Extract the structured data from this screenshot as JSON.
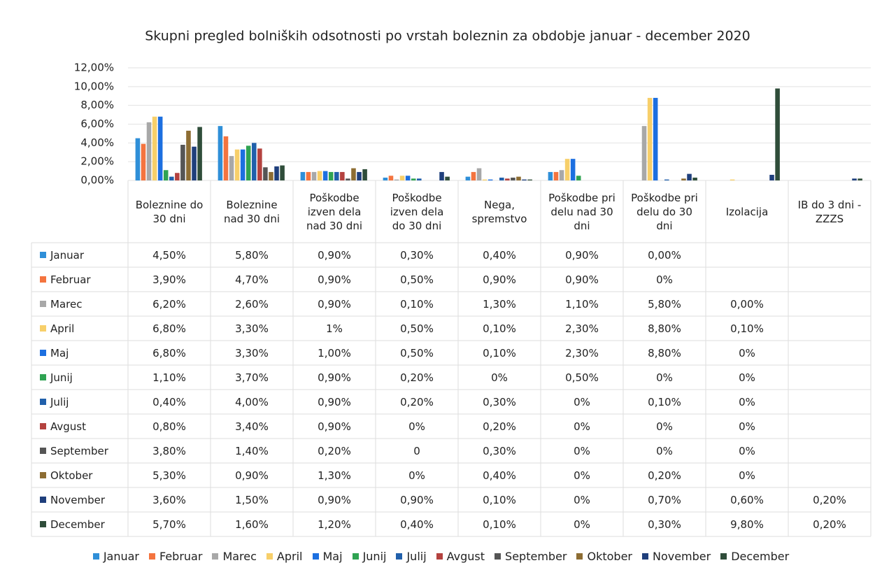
{
  "chart_data": {
    "type": "bar",
    "title": "Skupni pregled bolniških odsotnosti po vrstah boleznin za obdobje januar - december 2020",
    "categories": [
      "Boleznine do 30 dni",
      "Boleznine nad 30 dni",
      "Poškodbe izven dela nad 30 dni",
      "Poškodbe izven dela do 30 dni",
      "Nega, spremstvo",
      "Poškodbe pri delu nad 30 dni",
      "Poškodbe pri delu do 30 dni",
      "Izolacija",
      "IB do 3 dni - ZZZS"
    ],
    "ylim": [
      0,
      12
    ],
    "yticks": [
      {
        "value": 0,
        "label": "0,00%"
      },
      {
        "value": 2,
        "label": "2,00%"
      },
      {
        "value": 4,
        "label": "4,00%"
      },
      {
        "value": 6,
        "label": "6,00%"
      },
      {
        "value": 8,
        "label": "8,00%"
      },
      {
        "value": 10,
        "label": "10,00%"
      },
      {
        "value": 12,
        "label": "12,00%"
      }
    ],
    "grid": true,
    "legend": "bottom",
    "series": [
      {
        "name": "Januar",
        "color": "#2f8fd8",
        "values": [
          4.5,
          5.8,
          0.9,
          0.3,
          0.4,
          0.9,
          0.0,
          null,
          null
        ],
        "value_labels": [
          "4,50%",
          "5,80%",
          "0,90%",
          "0,30%",
          "0,40%",
          "0,90%",
          "0,00%",
          null,
          null
        ]
      },
      {
        "name": "Februar",
        "color": "#f4743f",
        "values": [
          3.9,
          4.7,
          0.9,
          0.5,
          0.9,
          0.9,
          0,
          null,
          null
        ],
        "value_labels": [
          "3,90%",
          "4,70%",
          "0,90%",
          "0,50%",
          "0,90%",
          "0,90%",
          "0%",
          null,
          null
        ]
      },
      {
        "name": "Marec",
        "color": "#a8a8a8",
        "values": [
          6.2,
          2.6,
          0.9,
          0.1,
          1.3,
          1.1,
          5.8,
          0.0,
          null
        ],
        "value_labels": [
          "6,20%",
          "2,60%",
          "0,90%",
          "0,10%",
          "1,30%",
          "1,10%",
          "5,80%",
          "0,00%",
          null
        ]
      },
      {
        "name": "April",
        "color": "#f7cf6a",
        "values": [
          6.8,
          3.3,
          1,
          0.5,
          0.1,
          2.3,
          8.8,
          0.1,
          null
        ],
        "value_labels": [
          "6,80%",
          "3,30%",
          "1%",
          "0,50%",
          "0,10%",
          "2,30%",
          "8,80%",
          "0,10%",
          null
        ]
      },
      {
        "name": "Maj",
        "color": "#1c6fe0",
        "values": [
          6.8,
          3.3,
          1.0,
          0.5,
          0.1,
          2.3,
          8.8,
          0,
          null
        ],
        "value_labels": [
          "6,80%",
          "3,30%",
          "1,00%",
          "0,50%",
          "0,10%",
          "2,30%",
          "8,80%",
          "0%",
          null
        ]
      },
      {
        "name": "Junij",
        "color": "#2fa352",
        "values": [
          1.1,
          3.7,
          0.9,
          0.2,
          0,
          0.5,
          0,
          0,
          null
        ],
        "value_labels": [
          "1,10%",
          "3,70%",
          "0,90%",
          "0,20%",
          "0%",
          "0,50%",
          "0%",
          "0%",
          null
        ]
      },
      {
        "name": "Julij",
        "color": "#2160ab",
        "values": [
          0.4,
          4.0,
          0.9,
          0.2,
          0.3,
          0,
          0.1,
          0,
          null
        ],
        "value_labels": [
          "0,40%",
          "4,00%",
          "0,90%",
          "0,20%",
          "0,30%",
          "0%",
          "0,10%",
          "0%",
          null
        ]
      },
      {
        "name": "Avgust",
        "color": "#b4423f",
        "values": [
          0.8,
          3.4,
          0.9,
          0,
          0.2,
          0,
          0,
          0,
          null
        ],
        "value_labels": [
          "0,80%",
          "3,40%",
          "0,90%",
          "0%",
          "0,20%",
          "0%",
          "0%",
          "0%",
          null
        ]
      },
      {
        "name": "September",
        "color": "#555555",
        "values": [
          3.8,
          1.4,
          0.2,
          0,
          0.3,
          0,
          0,
          0,
          null
        ],
        "value_labels": [
          "3,80%",
          "1,40%",
          "0,20%",
          "0",
          "0,30%",
          "0%",
          "0%",
          "0%",
          null
        ]
      },
      {
        "name": "Oktober",
        "color": "#8d6d33",
        "values": [
          5.3,
          0.9,
          1.3,
          0,
          0.4,
          0,
          0.2,
          0,
          null
        ],
        "value_labels": [
          "5,30%",
          "0,90%",
          "1,30%",
          "0%",
          "0,40%",
          "0%",
          "0,20%",
          "0%",
          null
        ]
      },
      {
        "name": "November",
        "color": "#1f3f7c",
        "values": [
          3.6,
          1.5,
          0.9,
          0.9,
          0.1,
          0,
          0.7,
          0.6,
          0.2
        ],
        "value_labels": [
          "3,60%",
          "1,50%",
          "0,90%",
          "0,90%",
          "0,10%",
          "0%",
          "0,70%",
          "0,60%",
          "0,20%"
        ]
      },
      {
        "name": "December",
        "color": "#2f4d3a",
        "values": [
          5.7,
          1.6,
          1.2,
          0.4,
          0.1,
          0,
          0.3,
          9.8,
          0.2
        ],
        "value_labels": [
          "5,70%",
          "1,60%",
          "1,20%",
          "0,40%",
          "0,10%",
          "0%",
          "0,30%",
          "9,80%",
          "0,20%"
        ]
      }
    ]
  }
}
